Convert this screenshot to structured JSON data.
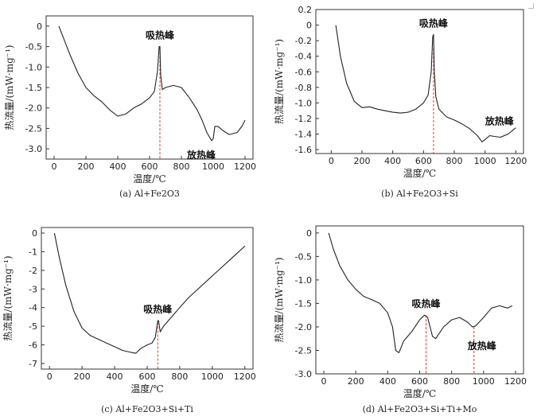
{
  "chart_data": [
    {
      "type": "line",
      "caption": "(a) Al+Fe2O3",
      "xlabel": "温度/℃",
      "ylabel": "热流量/(mW·mg⁻¹)",
      "xlim": [
        -50,
        1250
      ],
      "ylim": [
        -3.25,
        0.25
      ],
      "xticks": [
        0,
        200,
        400,
        600,
        800,
        1000,
        1200
      ],
      "xtick_labels": [
        "0",
        "200",
        "400",
        "600",
        "800",
        "1000",
        "1200"
      ],
      "yticks": [
        0,
        -0.5,
        -1.0,
        -1.5,
        -2.0,
        -2.5,
        -3.0
      ],
      "ytick_labels": [
        "0",
        "-0.5",
        "-1.0",
        "-1.5",
        "-2.0",
        "-2.5",
        "-3.0"
      ],
      "x": [
        30,
        60,
        100,
        150,
        200,
        250,
        300,
        350,
        400,
        450,
        500,
        550,
        600,
        630,
        650,
        660,
        665,
        670,
        680,
        700,
        750,
        800,
        850,
        900,
        930,
        960,
        990,
        1000,
        1010,
        1030,
        1060,
        1100,
        1150,
        1180,
        1200
      ],
      "y": [
        0,
        -0.3,
        -0.7,
        -1.15,
        -1.5,
        -1.7,
        -1.85,
        -2.05,
        -2.2,
        -2.15,
        -2.0,
        -1.9,
        -1.75,
        -1.6,
        -1.1,
        -0.5,
        -0.5,
        -1.2,
        -1.55,
        -1.5,
        -1.45,
        -1.5,
        -1.75,
        -2.05,
        -2.3,
        -2.6,
        -2.8,
        -2.75,
        -2.45,
        -2.45,
        -2.55,
        -2.65,
        -2.6,
        -2.45,
        -2.3
      ],
      "annotations": [
        {
          "text": "吸热峰",
          "x": 665,
          "y": -0.5,
          "side": "above"
        },
        {
          "text": "放热峰",
          "x": 1000,
          "y": -2.8,
          "side": "below-left"
        }
      ],
      "marker_line_x": 665,
      "marker_line_to": -0.55
    },
    {
      "type": "line",
      "caption": "(b) Al+Fe2O3+Si",
      "xlabel": "温度/℃",
      "ylabel": "热流量/(mW·mg⁻¹)",
      "xlim": [
        -100,
        1250
      ],
      "ylim": [
        -1.65,
        0.2
      ],
      "xticks": [
        0,
        200,
        400,
        600,
        800,
        1000,
        1200
      ],
      "xtick_labels": [
        "0",
        "200",
        "400",
        "600",
        "800",
        "1000",
        "1200"
      ],
      "yticks": [
        0.2,
        0,
        -0.2,
        -0.4,
        -0.6,
        -0.8,
        -1.0,
        -1.2,
        -1.4,
        -1.6
      ],
      "ytick_labels": [
        "0.2",
        "0",
        "-0.2",
        "-0.4",
        "-0.6",
        "-0.8",
        "-1.0",
        "-1.2",
        "-1.4",
        "-1.6"
      ],
      "x": [
        30,
        60,
        100,
        150,
        200,
        250,
        300,
        350,
        400,
        450,
        500,
        550,
        600,
        630,
        650,
        660,
        665,
        670,
        680,
        700,
        750,
        800,
        850,
        900,
        950,
        980,
        1000,
        1030,
        1060,
        1100,
        1150,
        1200
      ],
      "y": [
        0,
        -0.4,
        -0.75,
        -0.98,
        -1.06,
        -1.05,
        -1.08,
        -1.1,
        -1.12,
        -1.13,
        -1.12,
        -1.08,
        -1.0,
        -0.9,
        -0.6,
        -0.15,
        -0.12,
        -0.6,
        -0.92,
        -1.08,
        -1.18,
        -1.22,
        -1.27,
        -1.33,
        -1.42,
        -1.5,
        -1.47,
        -1.42,
        -1.43,
        -1.44,
        -1.4,
        -1.32
      ],
      "annotations": [
        {
          "text": "吸热峰",
          "x": 665,
          "y": -0.12,
          "side": "above"
        },
        {
          "text": "放热峰",
          "x": 980,
          "y": -1.5,
          "side": "above-right"
        }
      ],
      "marker_line_x": 665,
      "marker_line_to": -0.3
    },
    {
      "type": "line",
      "caption": "(c) Al+Fe2O3+Si+Ti",
      "xlabel": "温度/℃",
      "ylabel": "热流量/(mW·mg⁻¹)",
      "xlim": [
        -50,
        1250
      ],
      "ylim": [
        -7.3,
        0.3
      ],
      "xticks": [
        0,
        200,
        400,
        600,
        800,
        1000,
        1200
      ],
      "xtick_labels": [
        "0",
        "200",
        "400",
        "600",
        "800",
        "1000",
        "1200"
      ],
      "yticks": [
        0,
        -1,
        -2,
        -3,
        -4,
        -5,
        -6,
        -7
      ],
      "ytick_labels": [
        "0",
        "-1",
        "-2",
        "-3",
        "-4",
        "-5",
        "-6",
        "-7"
      ],
      "x": [
        30,
        60,
        100,
        150,
        200,
        250,
        300,
        350,
        400,
        450,
        500,
        530,
        560,
        600,
        630,
        650,
        665,
        670,
        680,
        700,
        750,
        800,
        850,
        900,
        950,
        1000,
        1050,
        1100,
        1150,
        1200
      ],
      "y": [
        0,
        -1.3,
        -2.8,
        -4.2,
        -5.1,
        -5.5,
        -5.7,
        -5.9,
        -6.1,
        -6.3,
        -6.4,
        -6.45,
        -6.2,
        -6.0,
        -5.9,
        -5.6,
        -4.7,
        -4.7,
        -5.3,
        -5.0,
        -4.5,
        -4.0,
        -3.5,
        -3.1,
        -2.7,
        -2.3,
        -1.9,
        -1.5,
        -1.1,
        -0.7
      ],
      "annotations": [
        {
          "text": "吸热峰",
          "x": 665,
          "y": -4.7,
          "side": "above"
        }
      ],
      "marker_line_x": 665,
      "marker_line_to": -4.8
    },
    {
      "type": "line",
      "caption": "(d) Al+Fe2O3+Si+Ti+Mo",
      "xlabel": "温度/℃",
      "ylabel": "热流量/(mW·mg⁻¹)",
      "xlim": [
        -50,
        1250
      ],
      "ylim": [
        -3.0,
        0.15
      ],
      "xticks": [
        0,
        200,
        400,
        600,
        800,
        1000,
        1200
      ],
      "xtick_labels": [
        "0",
        "200",
        "400",
        "600",
        "800",
        "1000",
        "1200"
      ],
      "yticks": [
        0,
        -0.5,
        -1.0,
        -1.5,
        -2.0,
        -2.5,
        -3.0
      ],
      "ytick_labels": [
        "0",
        "-0.5",
        "-1.0",
        "-1.5",
        "-2.0",
        "-2.5",
        "-3.0"
      ],
      "x": [
        30,
        60,
        100,
        150,
        200,
        250,
        300,
        350,
        400,
        430,
        450,
        470,
        500,
        550,
        600,
        630,
        650,
        680,
        700,
        750,
        800,
        850,
        900,
        930,
        950,
        1000,
        1050,
        1100,
        1150,
        1180
      ],
      "y": [
        0,
        -0.35,
        -0.7,
        -1.0,
        -1.2,
        -1.35,
        -1.42,
        -1.5,
        -1.7,
        -2.0,
        -2.5,
        -2.55,
        -2.3,
        -2.1,
        -1.85,
        -1.75,
        -1.8,
        -2.2,
        -2.25,
        -2.0,
        -1.85,
        -1.8,
        -1.9,
        -2.0,
        -1.98,
        -1.8,
        -1.6,
        -1.55,
        -1.6,
        -1.55
      ],
      "annotations": [
        {
          "text": "吸热峰",
          "x": 640,
          "y": -1.75,
          "side": "above"
        },
        {
          "text": "放热峰",
          "x": 940,
          "y": -2.0,
          "side": "below"
        }
      ],
      "marker_lines": [
        {
          "x": 640,
          "to": -1.75
        },
        {
          "x": 940,
          "to": -2.0
        }
      ]
    }
  ]
}
